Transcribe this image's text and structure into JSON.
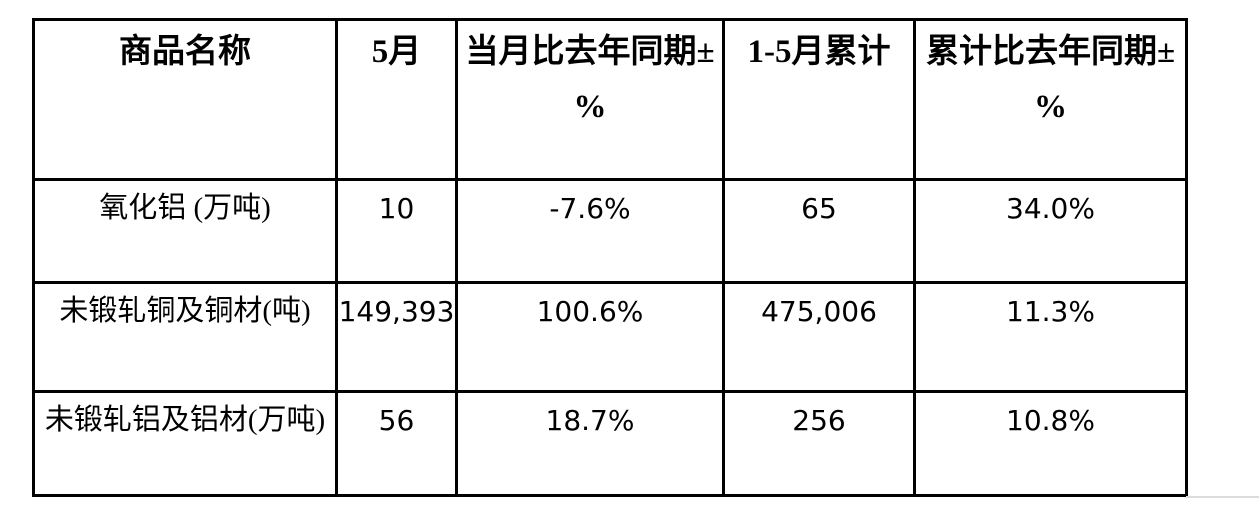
{
  "colors": {
    "table_border": "#000000",
    "text": "#000000",
    "background": "#ffffff",
    "page_edge_line": "#dcdcdc"
  },
  "table": {
    "headers": [
      {
        "line1": "商品名称",
        "line2": ""
      },
      {
        "line1": "5月",
        "line2": ""
      },
      {
        "line1": "当月比去年同期±",
        "line2": "%"
      },
      {
        "line1": "1-5月累计",
        "line2": ""
      },
      {
        "line1": "累计比去年同期±",
        "line2": "%"
      }
    ],
    "rows": [
      {
        "name": "氧化铝 (万吨)",
        "may": "10",
        "month_yoy": "-7.6%",
        "cumulative": "65",
        "cumulative_yoy": "34.0%"
      },
      {
        "name": "未锻轧铜及铜材(吨)",
        "may": "149,393",
        "month_yoy": "100.6%",
        "cumulative": "475,006",
        "cumulative_yoy": "11.3%"
      },
      {
        "name": "未锻轧铝及铝材(万吨)",
        "may": "56",
        "month_yoy": "18.7%",
        "cumulative": "256",
        "cumulative_yoy": "10.8%"
      }
    ]
  }
}
